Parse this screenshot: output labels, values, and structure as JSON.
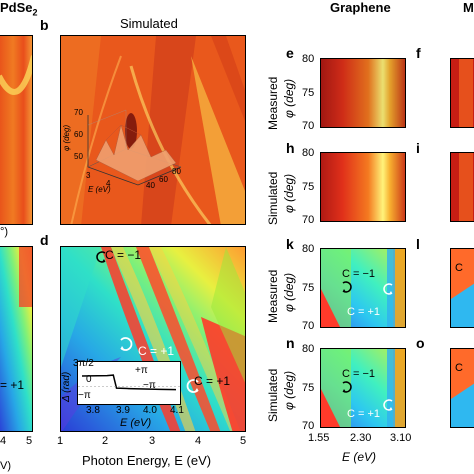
{
  "header": {
    "material_left": "PdSe",
    "material_left_sub": "2",
    "material_mid": "Graphene",
    "material_right_fragment": "M"
  },
  "panels": {
    "b": {
      "letter": "b",
      "title": "Simulated"
    },
    "d": {
      "letter": "d"
    },
    "e": {
      "letter": "e"
    },
    "f": {
      "letter": "f"
    },
    "h": {
      "letter": "h"
    },
    "i": {
      "letter": "i"
    },
    "k": {
      "letter": "k"
    },
    "l": {
      "letter": "l"
    },
    "n": {
      "letter": "n"
    },
    "o": {
      "letter": "o"
    }
  },
  "inset3d": {
    "axis_z": "φ (deg)",
    "z_ticks": [
      "70",
      "60",
      "50"
    ],
    "axis_x": "E (eV)",
    "x_ticks": [
      "3",
      "4"
    ],
    "y_ticks": [
      "40",
      "60",
      "80"
    ]
  },
  "main_axes": {
    "x_ticks": [
      "1",
      "2",
      "3",
      "4",
      "5"
    ],
    "left_x_ticks": [
      "4",
      "5"
    ],
    "xlabel": "Photon Energy, E (eV)",
    "left_fragment_top": "°)",
    "left_fragment_bottom": "V)"
  },
  "annotations_d": {
    "c_minus": "C = −1",
    "c_plus_mid": "C = +1",
    "c_plus_right": "C = +1",
    "left_fragment": "= +1",
    "plus_pi": "+π",
    "minus_pi": "−π"
  },
  "inset_phase": {
    "ylabel": "Δ (rad)",
    "y_ticks": [
      "3π/2",
      "0",
      "−π"
    ],
    "x_ticks": [
      "3.8",
      "3.9",
      "4.0",
      "4.1"
    ],
    "xlabel": "E (eV)",
    "chart_data": {
      "type": "line",
      "x": [
        3.8,
        3.85,
        3.88,
        3.9,
        3.91,
        3.95,
        4.0,
        4.05,
        4.1
      ],
      "series": [
        {
          "values": [
            2.4,
            2.45,
            2.5,
            2.6,
            -0.4,
            -0.5,
            -0.6,
            -0.7,
            -0.75
          ]
        }
      ],
      "xlim": [
        3.8,
        4.1
      ],
      "ylim": [
        -3.14,
        4.71
      ]
    }
  },
  "right_axes": {
    "row_labels": [
      "Measured",
      "Simulated",
      "Measured",
      "Simulated"
    ],
    "ylabel": "φ (deg)",
    "y_ticks": [
      "80",
      "75",
      "70"
    ],
    "x_ticks": [
      "1.55",
      "2.30",
      "3.10"
    ],
    "xlabel": "E (eV)"
  },
  "annotations_right": {
    "c_minus_k": "C = −1",
    "c_plus_k": "C = +1",
    "c_minus_n": "C = −1",
    "c_plus_n": "C = +1",
    "c_l": "C",
    "c_o": "C"
  }
}
